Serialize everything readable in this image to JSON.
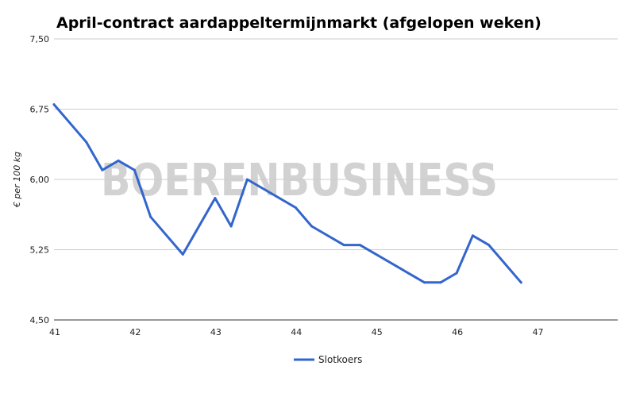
{
  "chart_data": {
    "type": "line",
    "title": "April-contract aardappeltermijnmarkt (afgelopen weken)",
    "xlabel": "",
    "ylabel": "€ per 100 kg",
    "xlim": [
      41,
      48
    ],
    "ylim": [
      4.5,
      7.5
    ],
    "x_ticks": [
      41,
      42,
      43,
      44,
      45,
      46,
      47
    ],
    "x_tick_labels": [
      "41",
      "42",
      "43",
      "44",
      "45",
      "46",
      "47"
    ],
    "y_ticks": [
      4.5,
      5.25,
      6.0,
      6.75,
      7.5
    ],
    "y_tick_labels": [
      "4,50",
      "5,25",
      "6,00",
      "6,75",
      "7,50"
    ],
    "grid": true,
    "legend_position": "bottom",
    "series": [
      {
        "name": "Slotkoers",
        "color": "#3366cc",
        "x": [
          41.0,
          41.4,
          41.6,
          41.8,
          42.0,
          42.2,
          42.6,
          43.0,
          43.2,
          43.4,
          44.0,
          44.2,
          44.6,
          44.8,
          45.6,
          45.8,
          46.0,
          46.2,
          46.4,
          46.8
        ],
        "values": [
          6.8,
          6.4,
          6.1,
          6.2,
          6.1,
          5.6,
          5.2,
          5.8,
          5.5,
          6.0,
          5.7,
          5.5,
          5.3,
          5.3,
          4.9,
          4.9,
          5.0,
          5.4,
          5.3,
          4.9
        ]
      }
    ],
    "watermark": "BOERENBUSINESS"
  }
}
